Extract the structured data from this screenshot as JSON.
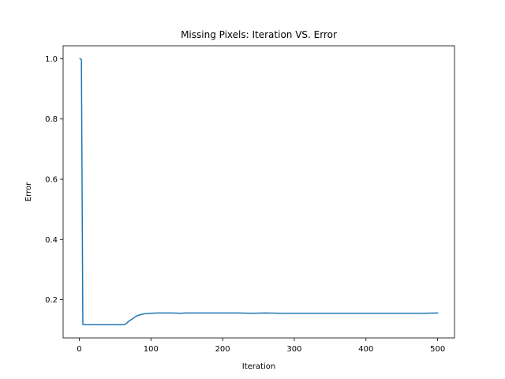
{
  "chart_data": {
    "type": "line",
    "title": "Missing Pixels: Iteration VS. Error",
    "xlabel": "Iteration",
    "ylabel": "Error",
    "xlim": [
      -22.5,
      523.5
    ],
    "ylim": [
      0.073,
      1.043
    ],
    "xticks": [
      0,
      100,
      200,
      300,
      400,
      500
    ],
    "yticks": [
      0.2,
      0.4,
      0.6,
      0.8,
      1.0
    ],
    "xtick_labels": [
      "0",
      "100",
      "200",
      "300",
      "400",
      "500"
    ],
    "ytick_labels": [
      "0.2",
      "0.4",
      "0.6",
      "0.8",
      "1.0"
    ],
    "grid": false,
    "series": [
      {
        "color": "#1f77b4",
        "x": [
          1,
          3,
          5,
          10,
          20,
          30,
          40,
          50,
          55,
          60,
          63,
          66,
          70,
          75,
          80,
          85,
          90,
          95,
          100,
          110,
          120,
          130,
          140,
          150,
          160,
          180,
          200,
          220,
          240,
          260,
          280,
          300,
          320,
          340,
          360,
          380,
          400,
          420,
          440,
          460,
          480,
          500
        ],
        "y": [
          1.0,
          0.998,
          0.118,
          0.117,
          0.117,
          0.117,
          0.117,
          0.117,
          0.117,
          0.117,
          0.117,
          0.122,
          0.13,
          0.138,
          0.146,
          0.15,
          0.153,
          0.154,
          0.155,
          0.156,
          0.156,
          0.156,
          0.155,
          0.156,
          0.156,
          0.156,
          0.156,
          0.156,
          0.155,
          0.156,
          0.155,
          0.155,
          0.155,
          0.155,
          0.155,
          0.155,
          0.155,
          0.155,
          0.155,
          0.155,
          0.155,
          0.156
        ]
      }
    ]
  }
}
